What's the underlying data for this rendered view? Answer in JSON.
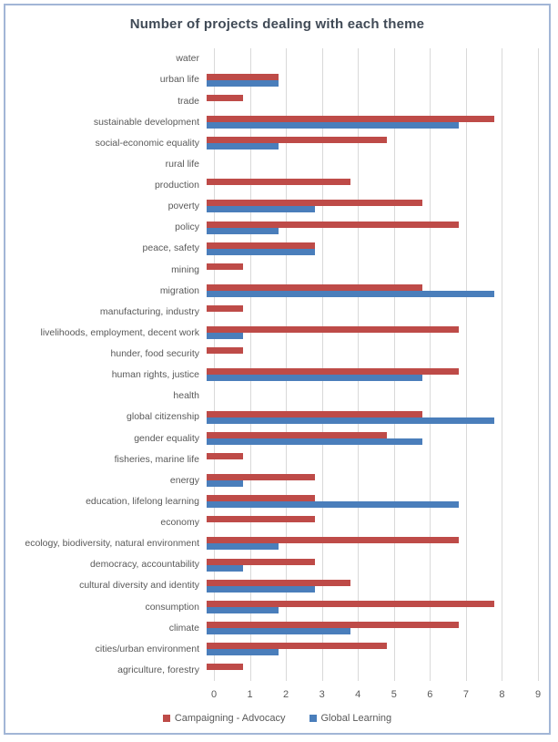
{
  "chart": {
    "title": "Number of projects dealing with each theme"
  },
  "chart_data": {
    "type": "bar",
    "orientation": "horizontal",
    "title": "Number of projects dealing with each theme",
    "categories": [
      "water",
      "urban life",
      "trade",
      "sustainable development",
      "social-economic equality",
      "rural life",
      "production",
      "poverty",
      "policy",
      "peace, safety",
      "mining",
      "migration",
      "manufacturing, industry",
      "livelihoods, employment, decent work",
      "hunder, food security",
      "human rights, justice",
      "health",
      "global citizenship",
      "gender equality",
      "fisheries, marine life",
      "energy",
      "education, lifelong learning",
      "economy",
      "ecology, biodiversity, natural environment",
      "democracy, accountability",
      "cultural diversity and identity",
      "consumption",
      "climate",
      "cities/urban environment",
      "agriculture, forestry"
    ],
    "series": [
      {
        "name": "Campaigning - Advocacy",
        "color": "#be4b48",
        "values": [
          0,
          2,
          1,
          8,
          5,
          0,
          4,
          6,
          7,
          3,
          1,
          6,
          1,
          7,
          1,
          7,
          0,
          6,
          5,
          1,
          3,
          3,
          3,
          7,
          3,
          4,
          8,
          7,
          5,
          1
        ]
      },
      {
        "name": "Global Learning",
        "color": "#4a7ebb",
        "values": [
          0,
          2,
          0,
          7,
          2,
          0,
          0,
          3,
          2,
          3,
          0,
          8,
          0,
          1,
          0,
          6,
          0,
          8,
          6,
          0,
          1,
          7,
          0,
          2,
          1,
          3,
          2,
          4,
          2,
          0
        ]
      }
    ],
    "xlim": [
      0,
      9
    ],
    "x_ticks": [
      "0",
      "1",
      "2",
      "3",
      "4",
      "5",
      "6",
      "7",
      "8",
      "9"
    ],
    "grid": true,
    "legend_position": "bottom",
    "colors": {
      "gridline": "#d9d9d9",
      "text": "#595959",
      "title": "#404a56",
      "panel_border": "#a2b6d6"
    }
  }
}
